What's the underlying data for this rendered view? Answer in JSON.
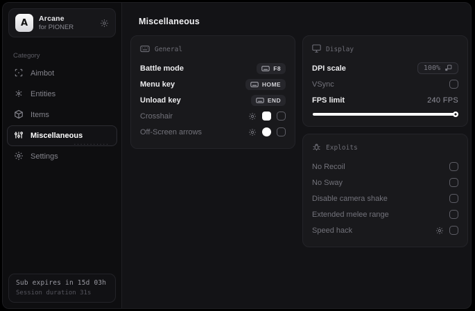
{
  "window": {
    "title": "Arcane",
    "subtitle": "for PIONER",
    "logo_letter": "A"
  },
  "sidebar": {
    "category_label": "Category",
    "items": [
      {
        "label": "Aimbot",
        "icon": "aimbot-crosshair-icon",
        "active": false
      },
      {
        "label": "Entities",
        "icon": "entities-icon",
        "active": false
      },
      {
        "label": "Items",
        "icon": "items-box-icon",
        "active": false
      },
      {
        "label": "Miscellaneous",
        "icon": "miscellaneous-sliders-icon",
        "active": true
      },
      {
        "label": "Settings",
        "icon": "settings-gear-icon",
        "active": false
      }
    ],
    "watermark": "···········",
    "footer": {
      "line1": "Sub expires in 15d 03h",
      "line2": "Session duration 31s"
    }
  },
  "main": {
    "title": "Miscellaneous",
    "general": {
      "header": "General",
      "rows": {
        "battle_mode": {
          "label": "Battle mode",
          "key": "F8"
        },
        "menu_key": {
          "label": "Menu key",
          "key": "HOME"
        },
        "unload_key": {
          "label": "Unload key",
          "key": "END"
        },
        "crosshair": {
          "label": "Crosshair",
          "swatch_color": "#ffffff",
          "checked": false
        },
        "offscreen_arrows": {
          "label": "Off-Screen arrows",
          "swatch_color": "#ffffff",
          "checked": false
        }
      }
    },
    "display": {
      "header": "Display",
      "dpi_scale": {
        "label": "DPI scale",
        "value": "100%"
      },
      "vsync": {
        "label": "VSync",
        "checked": false
      },
      "fps_limit": {
        "label": "FPS limit",
        "value": "240 FPS",
        "percent": 100
      }
    },
    "exploits": {
      "header": "Exploits",
      "rows": {
        "no_recoil": {
          "label": "No Recoil",
          "checked": false
        },
        "no_sway": {
          "label": "No Sway",
          "checked": false
        },
        "disable_camera_shake": {
          "label": "Disable camera shake",
          "checked": false
        },
        "extended_melee_range": {
          "label": "Extended melee range",
          "checked": false
        },
        "speed_hack": {
          "label": "Speed hack",
          "checked": false
        }
      }
    }
  },
  "colors": {
    "accent_white": "#ffffff",
    "sidebar_bg": "#0e0e10",
    "main_bg": "#131316",
    "card_bg": "#19191c",
    "border": "#242429",
    "text_primary": "#ececee",
    "text_muted": "#73737b"
  }
}
